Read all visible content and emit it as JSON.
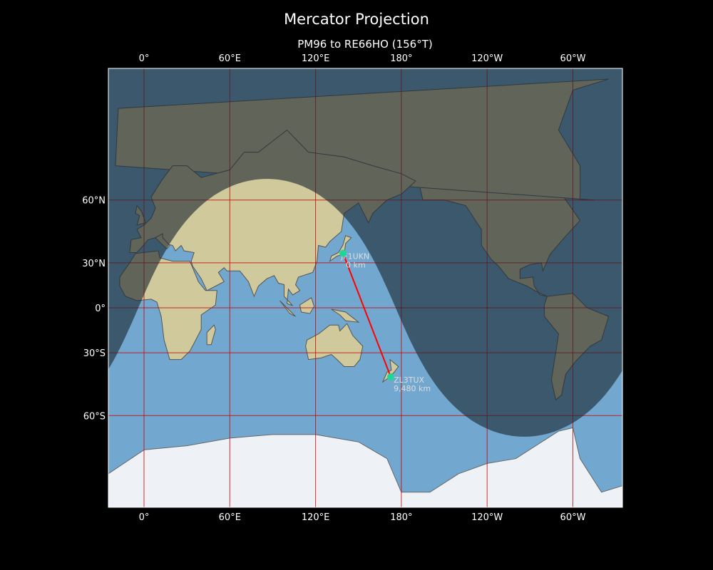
{
  "title": "Mercator Projection",
  "subtitle": "PM96 to RE66HO (156°T)",
  "map": {
    "projection": "mercator",
    "central_longitude": 155,
    "lon_range": [
      -25,
      335
    ],
    "lat_range": [
      -79,
      84.5
    ],
    "x_ticks": [
      {
        "lon": 0,
        "label": "0°"
      },
      {
        "lon": 60,
        "label": "60°E"
      },
      {
        "lon": 120,
        "label": "120°E"
      },
      {
        "lon": 180,
        "label": "180°"
      },
      {
        "lon": 240,
        "label": "120°W"
      },
      {
        "lon": 300,
        "label": "60°W"
      }
    ],
    "y_ticks": [
      {
        "lat": 60,
        "label": "60°N"
      },
      {
        "lat": 30,
        "label": "30°N"
      },
      {
        "lat": 0,
        "label": "0°"
      },
      {
        "lat": -30,
        "label": "30°S"
      },
      {
        "lat": -60,
        "label": "60°S"
      }
    ],
    "gridline_color": "#c80000",
    "path_color": "#ff0000",
    "marker_color": "#1ed69a",
    "night_shading": {
      "subsolar_lon": 86,
      "subsolar_lat": -23.4
    },
    "stations": [
      {
        "call": "JF1UKN",
        "distance": "0 km",
        "lon": 139.2,
        "lat": 35.6
      },
      {
        "call": "ZL3TUX",
        "distance": "9,480 km",
        "lon": 172.6,
        "lat": -43.5
      }
    ]
  }
}
